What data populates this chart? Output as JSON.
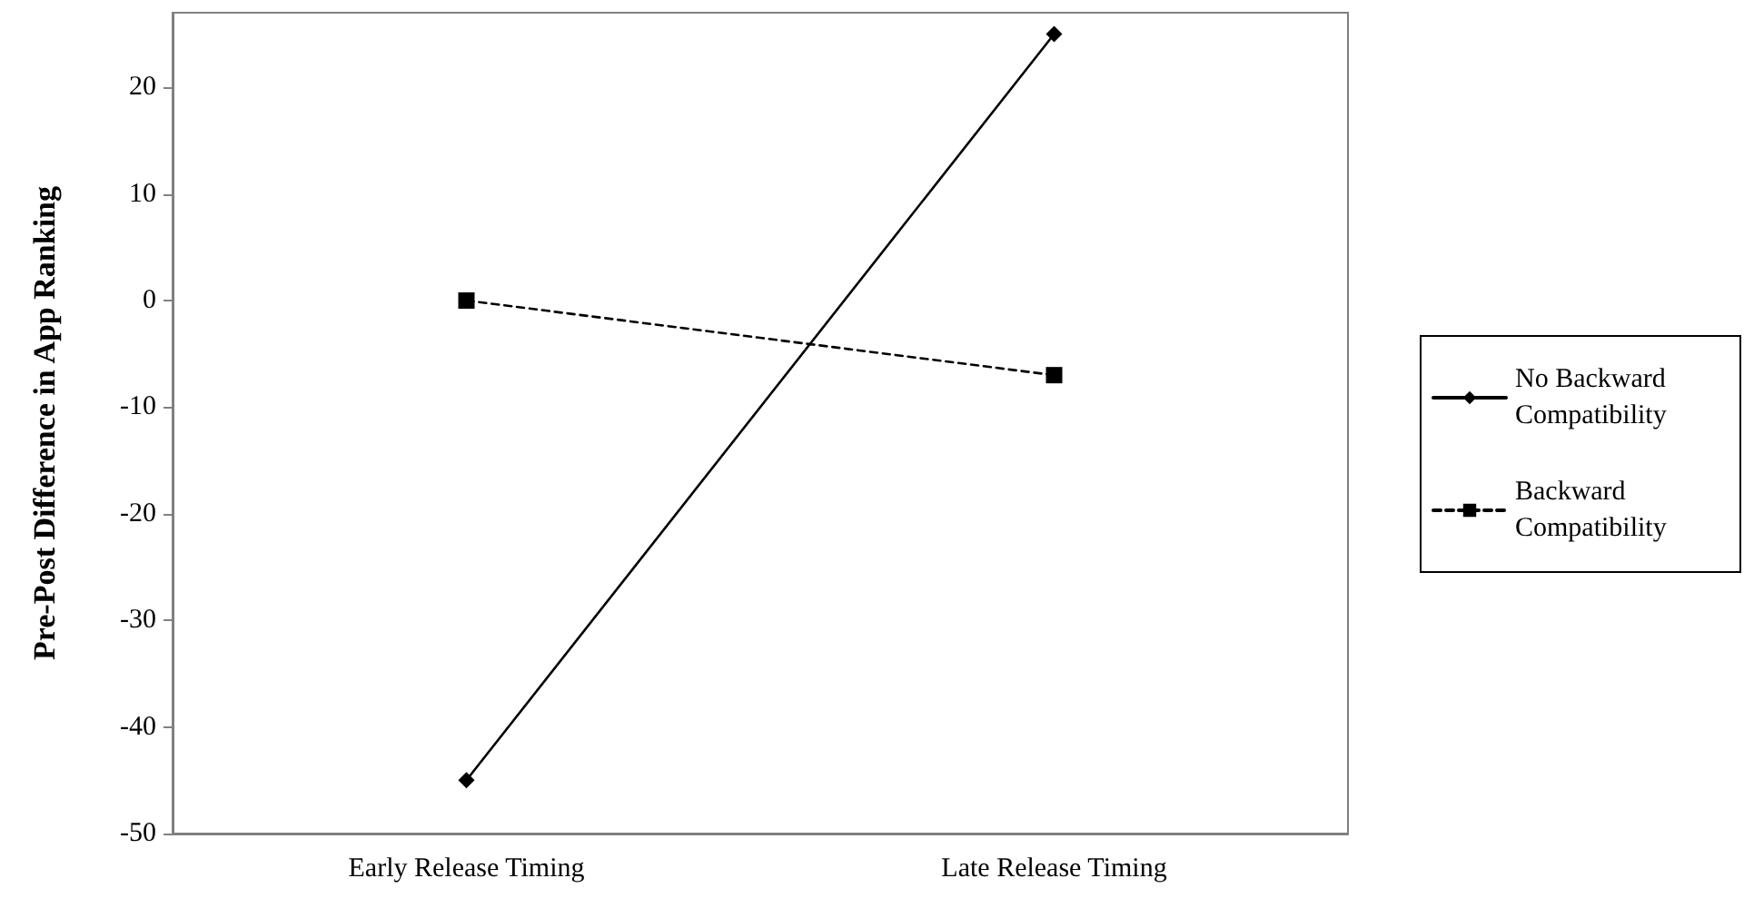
{
  "chart_data": {
    "type": "line",
    "ylabel": "Pre-Post Difference in App Ranking",
    "categories": [
      "Early Release Timing",
      "Late Release Timing"
    ],
    "series": [
      {
        "name": "No Backward Compatibility",
        "color": "#000000",
        "values": [
          -45,
          25
        ],
        "marker": "diamond",
        "line_style": "solid"
      },
      {
        "name": "Backward Compatibility",
        "color": "#000000",
        "values": [
          0,
          -7
        ],
        "marker": "square",
        "line_style": "dashed"
      }
    ],
    "ylim": [
      -50,
      27
    ],
    "yticks": [
      -50,
      -40,
      -30,
      -20,
      -10,
      0,
      10,
      20
    ],
    "grid": false,
    "legend": "right"
  }
}
